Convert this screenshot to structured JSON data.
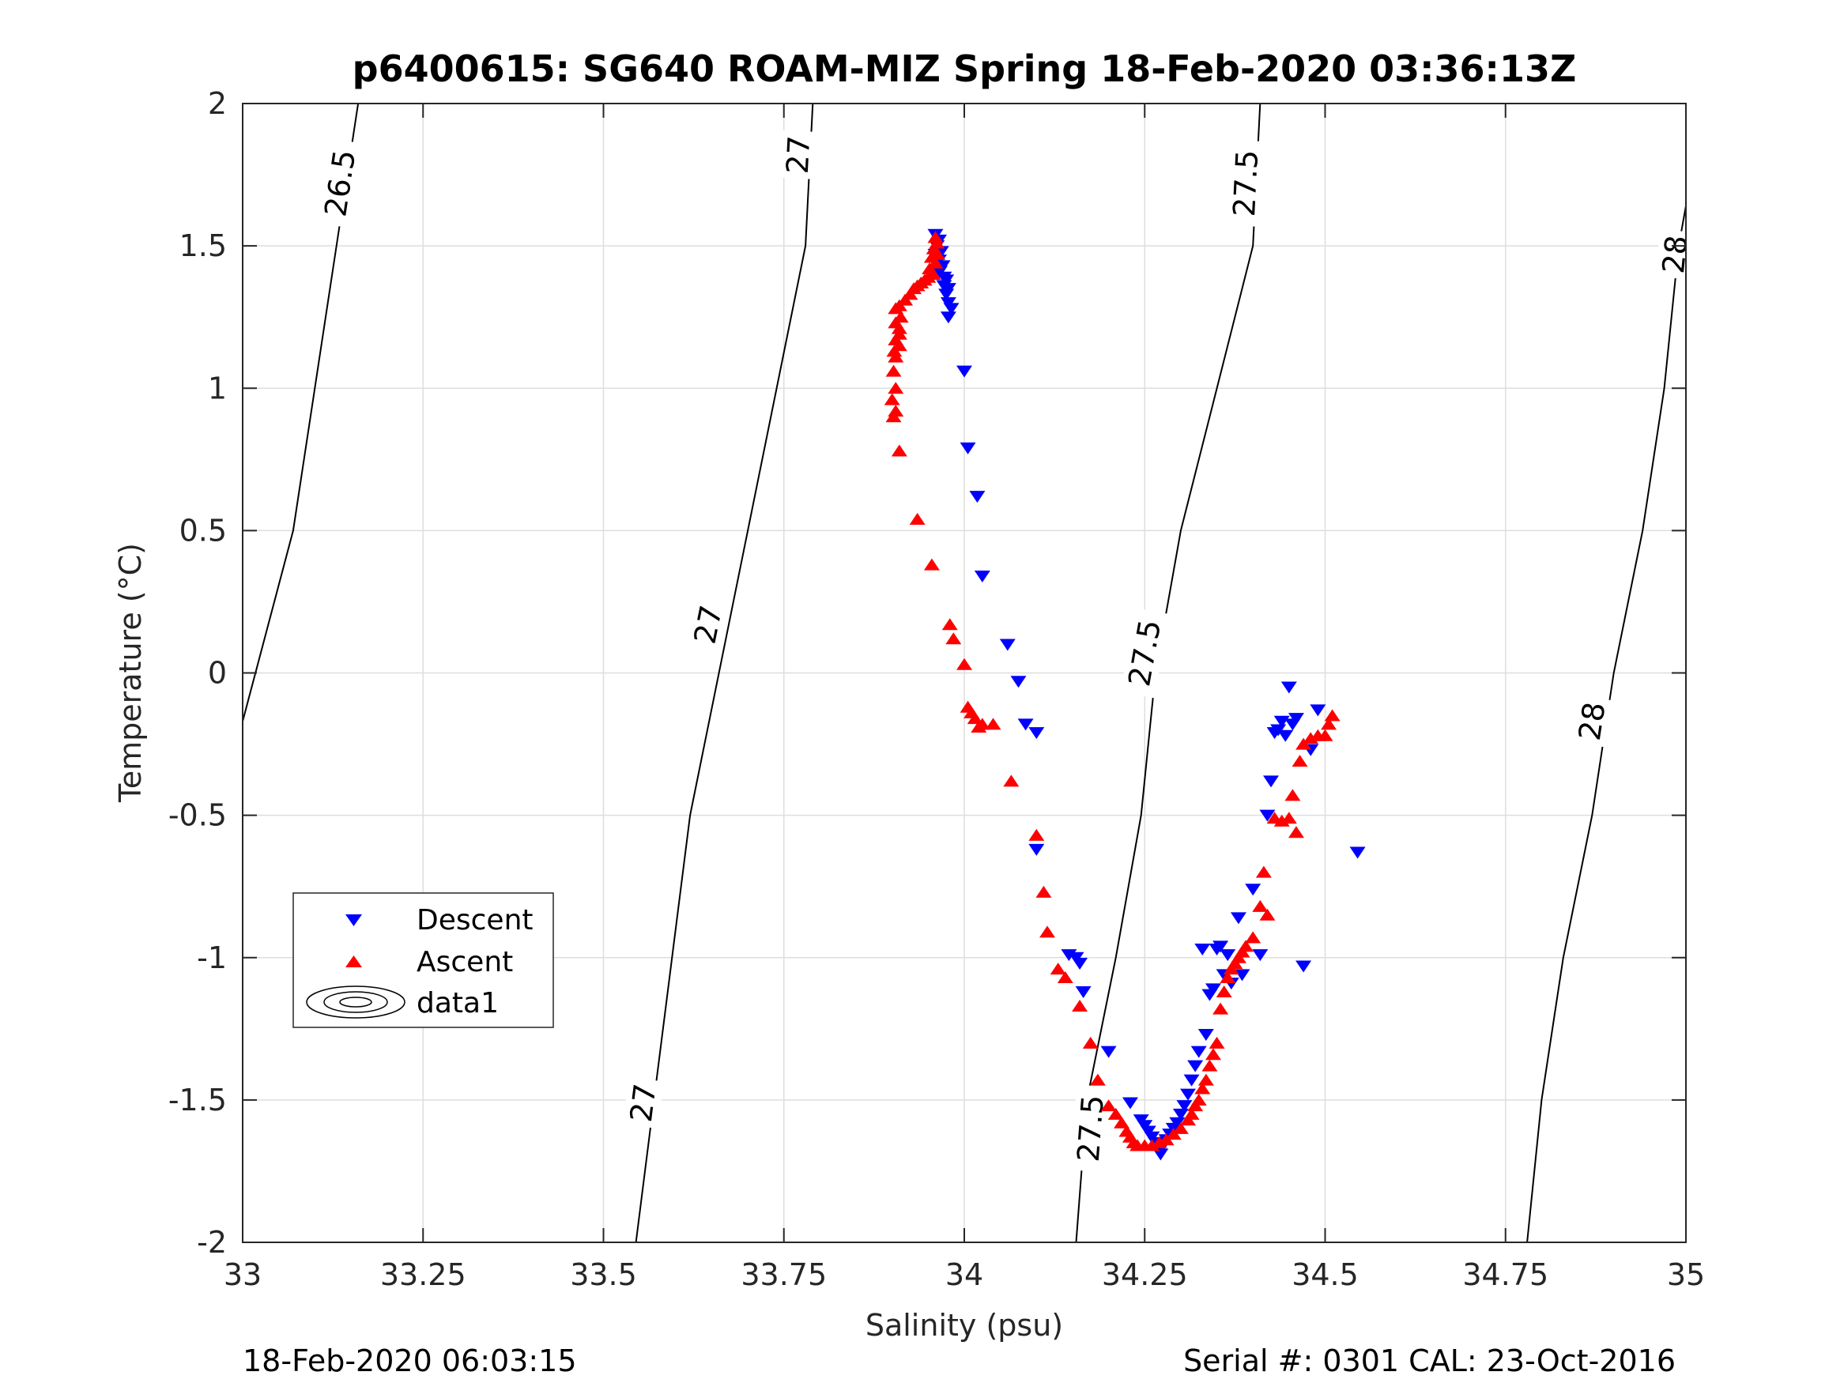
{
  "chart_data": {
    "type": "scatter",
    "title": "p6400615: SG640 ROAM-MIZ Spring 18-Feb-2020 03:36:13Z",
    "xlabel": "Salinity (psu)",
    "ylabel": "Temperature (°C)",
    "xlim": [
      33,
      35
    ],
    "ylim": [
      -2,
      2
    ],
    "xticks": [
      33,
      33.25,
      33.5,
      33.75,
      34,
      34.25,
      34.5,
      34.75,
      35
    ],
    "xtick_labels": [
      "33",
      "33.25",
      "33.5",
      "33.75",
      "34",
      "34.25",
      "34.5",
      "34.75",
      "35"
    ],
    "yticks": [
      -2,
      -1.5,
      -1,
      -0.5,
      0,
      0.5,
      1,
      1.5,
      2
    ],
    "ytick_labels": [
      "-2",
      "-1.5",
      "-1",
      "-0.5",
      "0",
      "0.5",
      "1",
      "1.5",
      "2"
    ],
    "grid": true,
    "legend_position": "lower-left",
    "footer_left": "18-Feb-2020 06:03:15",
    "footer_right": "Serial #: 0301  CAL: 23-Oct-2016",
    "contours": [
      {
        "name": "26.5",
        "label": "26.5",
        "points": [
          [
            33.0,
            -0.17
          ],
          [
            33.07,
            0.5
          ],
          [
            33.13,
            1.5
          ],
          [
            33.16,
            2.0
          ]
        ],
        "label_positions": [
          [
            33.135,
            1.72
          ]
        ]
      },
      {
        "name": "27",
        "label": "27",
        "points": [
          [
            33.545,
            -2.0
          ],
          [
            33.57,
            -1.5
          ],
          [
            33.62,
            -0.5
          ],
          [
            33.66,
            0.0
          ],
          [
            33.7,
            0.5
          ],
          [
            33.78,
            1.5
          ],
          [
            33.79,
            2.0
          ]
        ],
        "label_positions": [
          [
            33.555,
            -1.51
          ],
          [
            33.645,
            0.17
          ],
          [
            33.77,
            1.82
          ]
        ]
      },
      {
        "name": "27.5",
        "label": "27.5",
        "points": [
          [
            34.155,
            -2.0
          ],
          [
            34.17,
            -1.5
          ],
          [
            34.21,
            -1.0
          ],
          [
            34.245,
            -0.5
          ],
          [
            34.265,
            0.0
          ],
          [
            34.3,
            0.5
          ],
          [
            34.35,
            1.0
          ],
          [
            34.4,
            1.5
          ],
          [
            34.41,
            2.0
          ]
        ],
        "label_positions": [
          [
            34.175,
            -1.6
          ],
          [
            34.25,
            0.07
          ],
          [
            34.39,
            1.72
          ]
        ]
      },
      {
        "name": "28",
        "label": "28",
        "points": [
          [
            34.78,
            -2.0
          ],
          [
            34.8,
            -1.5
          ],
          [
            34.83,
            -1.0
          ],
          [
            34.87,
            -0.5
          ],
          [
            34.9,
            0.0
          ],
          [
            34.94,
            0.5
          ],
          [
            34.97,
            1.0
          ],
          [
            34.99,
            1.5
          ],
          [
            35.0,
            1.64
          ]
        ],
        "label_positions": [
          [
            34.87,
            -0.17
          ],
          [
            34.985,
            1.47
          ]
        ]
      }
    ],
    "series": [
      {
        "name": "Descent",
        "color": "#0000ff",
        "marker": "triangle-down",
        "points": [
          [
            33.96,
            1.54
          ],
          [
            33.965,
            1.52
          ],
          [
            33.962,
            1.5
          ],
          [
            33.968,
            1.48
          ],
          [
            33.96,
            1.47
          ],
          [
            33.965,
            1.45
          ],
          [
            33.97,
            1.43
          ],
          [
            33.966,
            1.41
          ],
          [
            33.972,
            1.39
          ],
          [
            33.975,
            1.38
          ],
          [
            33.972,
            1.36
          ],
          [
            33.978,
            1.35
          ],
          [
            33.975,
            1.33
          ],
          [
            33.978,
            1.3
          ],
          [
            33.982,
            1.28
          ],
          [
            33.978,
            1.25
          ],
          [
            34.0,
            1.06
          ],
          [
            34.005,
            0.79
          ],
          [
            34.018,
            0.62
          ],
          [
            34.025,
            0.34
          ],
          [
            34.06,
            0.1
          ],
          [
            34.075,
            -0.03
          ],
          [
            34.085,
            -0.18
          ],
          [
            34.1,
            -0.21
          ],
          [
            34.1,
            -0.62
          ],
          [
            34.145,
            -0.99
          ],
          [
            34.155,
            -1.0
          ],
          [
            34.16,
            -1.02
          ],
          [
            34.165,
            -1.12
          ],
          [
            34.2,
            -1.33
          ],
          [
            34.23,
            -1.51
          ],
          [
            34.245,
            -1.57
          ],
          [
            34.25,
            -1.59
          ],
          [
            34.255,
            -1.61
          ],
          [
            34.26,
            -1.63
          ],
          [
            34.265,
            -1.65
          ],
          [
            34.268,
            -1.67
          ],
          [
            34.272,
            -1.69
          ],
          [
            34.275,
            -1.66
          ],
          [
            34.28,
            -1.64
          ],
          [
            34.285,
            -1.62
          ],
          [
            34.29,
            -1.6
          ],
          [
            34.295,
            -1.58
          ],
          [
            34.3,
            -1.55
          ],
          [
            34.305,
            -1.52
          ],
          [
            34.31,
            -1.48
          ],
          [
            34.315,
            -1.43
          ],
          [
            34.32,
            -1.38
          ],
          [
            34.325,
            -1.33
          ],
          [
            34.33,
            -0.97
          ],
          [
            34.335,
            -1.27
          ],
          [
            34.34,
            -1.13
          ],
          [
            34.345,
            -1.11
          ],
          [
            34.35,
            -0.97
          ],
          [
            34.355,
            -0.96
          ],
          [
            34.36,
            -1.06
          ],
          [
            34.365,
            -0.99
          ],
          [
            34.37,
            -1.09
          ],
          [
            34.38,
            -0.86
          ],
          [
            34.385,
            -1.06
          ],
          [
            34.4,
            -0.76
          ],
          [
            34.41,
            -0.99
          ],
          [
            34.42,
            -0.5
          ],
          [
            34.425,
            -0.38
          ],
          [
            34.43,
            -0.21
          ],
          [
            34.435,
            -0.2
          ],
          [
            34.44,
            -0.17
          ],
          [
            34.445,
            -0.22
          ],
          [
            34.45,
            -0.05
          ],
          [
            34.455,
            -0.18
          ],
          [
            34.46,
            -0.16
          ],
          [
            34.47,
            -1.03
          ],
          [
            34.48,
            -0.27
          ],
          [
            34.49,
            -0.13
          ],
          [
            34.545,
            -0.63
          ]
        ]
      },
      {
        "name": "Ascent",
        "color": "#ff0000",
        "marker": "triangle-up",
        "points": [
          [
            33.96,
            1.53
          ],
          [
            33.962,
            1.51
          ],
          [
            33.958,
            1.49
          ],
          [
            33.963,
            1.47
          ],
          [
            33.955,
            1.46
          ],
          [
            33.96,
            1.44
          ],
          [
            33.952,
            1.42
          ],
          [
            33.957,
            1.4
          ],
          [
            33.95,
            1.39
          ],
          [
            33.945,
            1.38
          ],
          [
            33.94,
            1.37
          ],
          [
            33.935,
            1.36
          ],
          [
            33.93,
            1.35
          ],
          [
            33.925,
            1.33
          ],
          [
            33.918,
            1.31
          ],
          [
            33.91,
            1.29
          ],
          [
            33.905,
            1.28
          ],
          [
            33.912,
            1.25
          ],
          [
            33.905,
            1.23
          ],
          [
            33.91,
            1.21
          ],
          [
            33.91,
            1.19
          ],
          [
            33.905,
            1.17
          ],
          [
            33.91,
            1.15
          ],
          [
            33.903,
            1.13
          ],
          [
            33.905,
            1.11
          ],
          [
            33.902,
            1.06
          ],
          [
            33.905,
            1.0
          ],
          [
            33.9,
            0.96
          ],
          [
            33.905,
            0.92
          ],
          [
            33.902,
            0.9
          ],
          [
            33.91,
            0.78
          ],
          [
            33.935,
            0.54
          ],
          [
            33.955,
            0.38
          ],
          [
            33.98,
            0.17
          ],
          [
            33.985,
            0.12
          ],
          [
            34.0,
            0.03
          ],
          [
            34.005,
            -0.12
          ],
          [
            34.01,
            -0.14
          ],
          [
            34.015,
            -0.16
          ],
          [
            34.02,
            -0.19
          ],
          [
            34.025,
            -0.18
          ],
          [
            34.04,
            -0.18
          ],
          [
            34.065,
            -0.38
          ],
          [
            34.1,
            -0.57
          ],
          [
            34.11,
            -0.77
          ],
          [
            34.115,
            -0.91
          ],
          [
            34.13,
            -1.04
          ],
          [
            34.14,
            -1.07
          ],
          [
            34.16,
            -1.17
          ],
          [
            34.175,
            -1.3
          ],
          [
            34.185,
            -1.43
          ],
          [
            34.2,
            -1.52
          ],
          [
            34.21,
            -1.55
          ],
          [
            34.218,
            -1.58
          ],
          [
            34.225,
            -1.61
          ],
          [
            34.23,
            -1.63
          ],
          [
            34.235,
            -1.65
          ],
          [
            34.24,
            -1.66
          ],
          [
            34.25,
            -1.66
          ],
          [
            34.26,
            -1.66
          ],
          [
            34.27,
            -1.65
          ],
          [
            34.28,
            -1.64
          ],
          [
            34.29,
            -1.62
          ],
          [
            34.3,
            -1.6
          ],
          [
            34.31,
            -1.57
          ],
          [
            34.315,
            -1.55
          ],
          [
            34.32,
            -1.52
          ],
          [
            34.325,
            -1.5
          ],
          [
            34.33,
            -1.46
          ],
          [
            34.335,
            -1.43
          ],
          [
            34.34,
            -1.38
          ],
          [
            34.345,
            -1.34
          ],
          [
            34.35,
            -1.3
          ],
          [
            34.355,
            -1.18
          ],
          [
            34.36,
            -1.12
          ],
          [
            34.365,
            -1.07
          ],
          [
            34.37,
            -1.04
          ],
          [
            34.375,
            -1.02
          ],
          [
            34.38,
            -1.0
          ],
          [
            34.385,
            -0.98
          ],
          [
            34.39,
            -0.96
          ],
          [
            34.4,
            -0.93
          ],
          [
            34.41,
            -0.82
          ],
          [
            34.415,
            -0.7
          ],
          [
            34.42,
            -0.85
          ],
          [
            34.43,
            -0.51
          ],
          [
            34.44,
            -0.52
          ],
          [
            34.45,
            -0.51
          ],
          [
            34.455,
            -0.43
          ],
          [
            34.46,
            -0.56
          ],
          [
            34.465,
            -0.31
          ],
          [
            34.47,
            -0.25
          ],
          [
            34.48,
            -0.23
          ],
          [
            34.49,
            -0.22
          ],
          [
            34.5,
            -0.22
          ],
          [
            34.505,
            -0.18
          ],
          [
            34.51,
            -0.15
          ]
        ]
      }
    ],
    "legend": [
      {
        "name": "Descent",
        "label": "Descent"
      },
      {
        "name": "Ascent",
        "label": "Ascent"
      },
      {
        "name": "data1",
        "label": "data1"
      }
    ]
  }
}
